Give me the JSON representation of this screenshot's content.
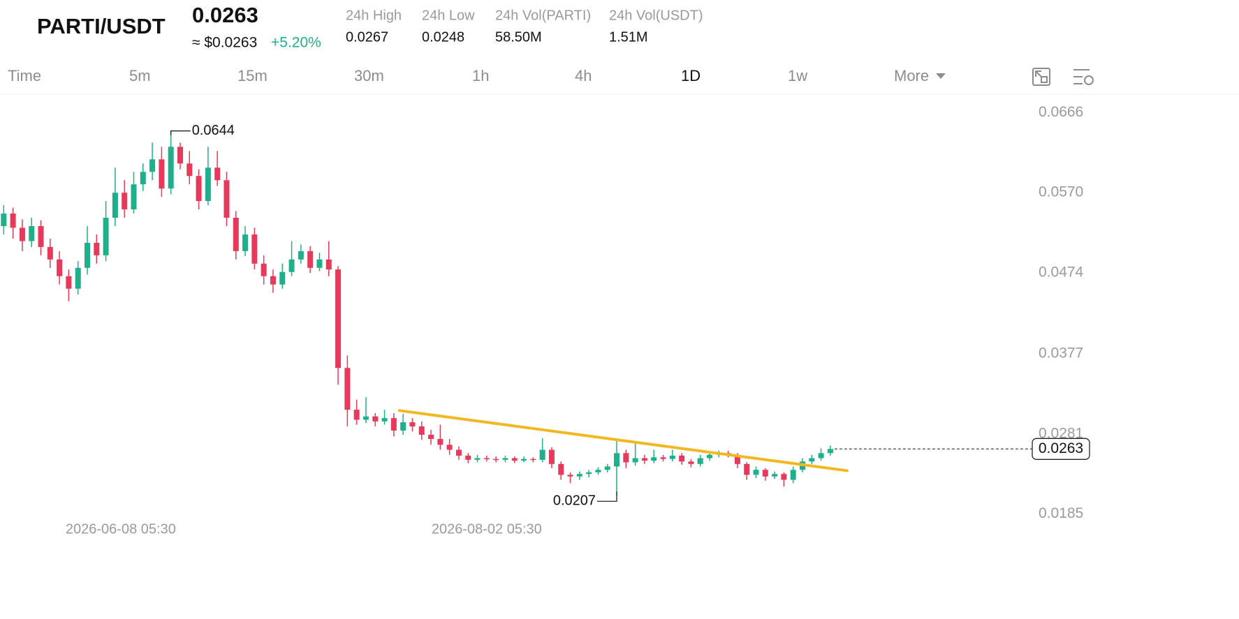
{
  "header": {
    "pair": "PARTI/USDT",
    "price": "0.0263",
    "price_usd": "≈ $0.0263",
    "change": "+5.20%",
    "stats": [
      {
        "label": "24h High",
        "value": "0.0267"
      },
      {
        "label": "24h Low",
        "value": "0.0248"
      },
      {
        "label": "24h Vol(PARTI)",
        "value": "58.50M"
      },
      {
        "label": "24h Vol(USDT)",
        "value": "1.51M"
      }
    ]
  },
  "tabs": [
    "Time",
    "5m",
    "15m",
    "30m",
    "1h",
    "4h",
    "1D",
    "1w",
    "More"
  ],
  "active_tab": 6,
  "chart_data": {
    "type": "candlestick",
    "up_color": "#1fb08b",
    "down_color": "#e8395a",
    "candles": {
      "open": [
        0.053,
        0.0545,
        0.0528,
        0.0512,
        0.053,
        0.0505,
        0.049,
        0.047,
        0.0455,
        0.048,
        0.051,
        0.0495,
        0.054,
        0.057,
        0.055,
        0.058,
        0.0595,
        0.061,
        0.0575,
        0.0625,
        0.0605,
        0.059,
        0.056,
        0.06,
        0.0585,
        0.054,
        0.05,
        0.052,
        0.0485,
        0.047,
        0.046,
        0.0475,
        0.049,
        0.05,
        0.048,
        0.049,
        0.0478,
        0.036,
        0.031,
        0.0298,
        0.0302,
        0.0296,
        0.03,
        0.0285,
        0.0295,
        0.029,
        0.028,
        0.0275,
        0.0268,
        0.0262,
        0.0255,
        0.025,
        0.0252,
        0.0251,
        0.025,
        0.0252,
        0.0249,
        0.0251,
        0.025,
        0.0262,
        0.0245,
        0.0232,
        0.023,
        0.0233,
        0.0235,
        0.0238,
        0.0242,
        0.0258,
        0.0247,
        0.0252,
        0.0249,
        0.0253,
        0.0251,
        0.0255,
        0.0248,
        0.0245,
        0.0252,
        0.0256,
        0.0258,
        0.0256,
        0.0245,
        0.0232,
        0.0238,
        0.023,
        0.0233,
        0.0226,
        0.0238,
        0.0248,
        0.0252,
        0.0258
      ],
      "high": [
        0.0555,
        0.0552,
        0.0538,
        0.054,
        0.0537,
        0.0515,
        0.05,
        0.0478,
        0.0488,
        0.053,
        0.052,
        0.056,
        0.06,
        0.0585,
        0.0595,
        0.0605,
        0.063,
        0.0625,
        0.0644,
        0.063,
        0.062,
        0.0598,
        0.0625,
        0.062,
        0.0595,
        0.0548,
        0.053,
        0.0528,
        0.0495,
        0.0478,
        0.0485,
        0.0512,
        0.0508,
        0.0506,
        0.0498,
        0.0512,
        0.0482,
        0.0375,
        0.0322,
        0.0325,
        0.0306,
        0.031,
        0.0306,
        0.0305,
        0.03,
        0.0296,
        0.0286,
        0.0292,
        0.0275,
        0.0266,
        0.0258,
        0.0256,
        0.0255,
        0.0254,
        0.0255,
        0.0254,
        0.0254,
        0.0253,
        0.0276,
        0.0265,
        0.0248,
        0.0235,
        0.0236,
        0.0238,
        0.0241,
        0.0245,
        0.0275,
        0.0262,
        0.0271,
        0.0256,
        0.0262,
        0.0256,
        0.0262,
        0.0258,
        0.0251,
        0.0256,
        0.0259,
        0.0261,
        0.0261,
        0.0258,
        0.0247,
        0.0242,
        0.024,
        0.0236,
        0.0235,
        0.0242,
        0.0252,
        0.0256,
        0.0264,
        0.0267
      ],
      "low": [
        0.052,
        0.0515,
        0.05,
        0.0505,
        0.0495,
        0.048,
        0.046,
        0.044,
        0.0448,
        0.0472,
        0.0485,
        0.0488,
        0.053,
        0.054,
        0.0545,
        0.0572,
        0.0585,
        0.0565,
        0.0568,
        0.0598,
        0.058,
        0.055,
        0.0555,
        0.0578,
        0.053,
        0.049,
        0.0494,
        0.0478,
        0.046,
        0.045,
        0.0455,
        0.047,
        0.0485,
        0.0474,
        0.0476,
        0.047,
        0.034,
        0.029,
        0.0292,
        0.0294,
        0.029,
        0.0292,
        0.0278,
        0.028,
        0.0284,
        0.0274,
        0.0268,
        0.0262,
        0.0256,
        0.025,
        0.0246,
        0.0247,
        0.0248,
        0.0247,
        0.0247,
        0.0246,
        0.0247,
        0.0247,
        0.0247,
        0.024,
        0.0226,
        0.0222,
        0.0226,
        0.0229,
        0.0232,
        0.0235,
        0.0207,
        0.024,
        0.0243,
        0.0245,
        0.0246,
        0.0248,
        0.0248,
        0.0244,
        0.0241,
        0.0242,
        0.0249,
        0.0253,
        0.0253,
        0.024,
        0.0226,
        0.0228,
        0.0225,
        0.0227,
        0.0218,
        0.0222,
        0.0235,
        0.0245,
        0.0249,
        0.0255
      ],
      "close": [
        0.0545,
        0.0528,
        0.0512,
        0.053,
        0.0505,
        0.049,
        0.047,
        0.0455,
        0.048,
        0.051,
        0.0495,
        0.054,
        0.057,
        0.055,
        0.058,
        0.0595,
        0.061,
        0.0575,
        0.0625,
        0.0605,
        0.059,
        0.056,
        0.06,
        0.0585,
        0.054,
        0.05,
        0.052,
        0.0485,
        0.047,
        0.046,
        0.0475,
        0.049,
        0.05,
        0.048,
        0.049,
        0.0478,
        0.036,
        0.031,
        0.0298,
        0.0302,
        0.0296,
        0.03,
        0.0285,
        0.0295,
        0.029,
        0.028,
        0.0275,
        0.0268,
        0.0262,
        0.0255,
        0.025,
        0.0252,
        0.0251,
        0.025,
        0.0252,
        0.0249,
        0.0251,
        0.025,
        0.0262,
        0.0245,
        0.0232,
        0.023,
        0.0233,
        0.0235,
        0.0238,
        0.0242,
        0.0258,
        0.0247,
        0.0252,
        0.0249,
        0.0253,
        0.0251,
        0.0255,
        0.0248,
        0.0245,
        0.0252,
        0.0256,
        0.0258,
        0.0256,
        0.0245,
        0.0232,
        0.0238,
        0.023,
        0.0233,
        0.0226,
        0.0238,
        0.0248,
        0.0252,
        0.0258,
        0.0263
      ]
    },
    "xlim": [
      -0.4,
      133
    ],
    "xticks": [
      {
        "value": 12.6,
        "label": "2026-06-08 05:30"
      },
      {
        "value": 52,
        "label": "2026-08-02 05:30"
      }
    ],
    "ylim": [
      0.0178,
      0.0688
    ],
    "yticks": [
      0.0666,
      {
        "value": 0.057,
        "label": "0.0570"
      },
      0.0474,
      0.0377,
      0.0281,
      0.0185
    ],
    "grid": false,
    "high_marker": 18,
    "low_marker": 66,
    "trend_line": {
      "color": "#f2b824",
      "points": [
        [
          42.6,
          0.0309
        ],
        [
          90.8,
          0.0237
        ]
      ]
    }
  }
}
